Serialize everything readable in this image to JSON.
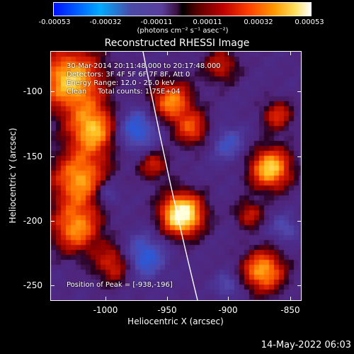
{
  "colorbar": {
    "ticks": [
      "-0.00053",
      "-0.00032",
      "-0.00011",
      "0.00011",
      "0.00032",
      "0.00053"
    ],
    "unit": "(photons cm⁻² s⁻¹ asec⁻²)"
  },
  "title": "Reconstructed RHESSI Image",
  "annotations": {
    "time": "30-Mar-2014 20:11:48.000 to 20:17:48.000",
    "detectors": "Detectors: 3F 4F 5F 6F 7F 8F, Att 0",
    "energy": "Energy Range: 12.0 - 25.0 keV",
    "method": "Clean     Total counts: 1.75E+04",
    "peak": "Position of Peak = [-938,-196]"
  },
  "axes": {
    "xlabel": "Heliocentric X (arcsec)",
    "ylabel": "Heliocentric Y (arcsec)",
    "xticks": [
      "-1000",
      "-950",
      "-900",
      "-850"
    ],
    "yticks": [
      "-100",
      "-150",
      "-200",
      "-250"
    ],
    "xlim": [
      -1040,
      -835
    ],
    "ylim": [
      -265,
      -70
    ]
  },
  "datestamp": "14-May-2022 06:03",
  "colors": {
    "background": "#000000",
    "limb": "#ffffff"
  }
}
